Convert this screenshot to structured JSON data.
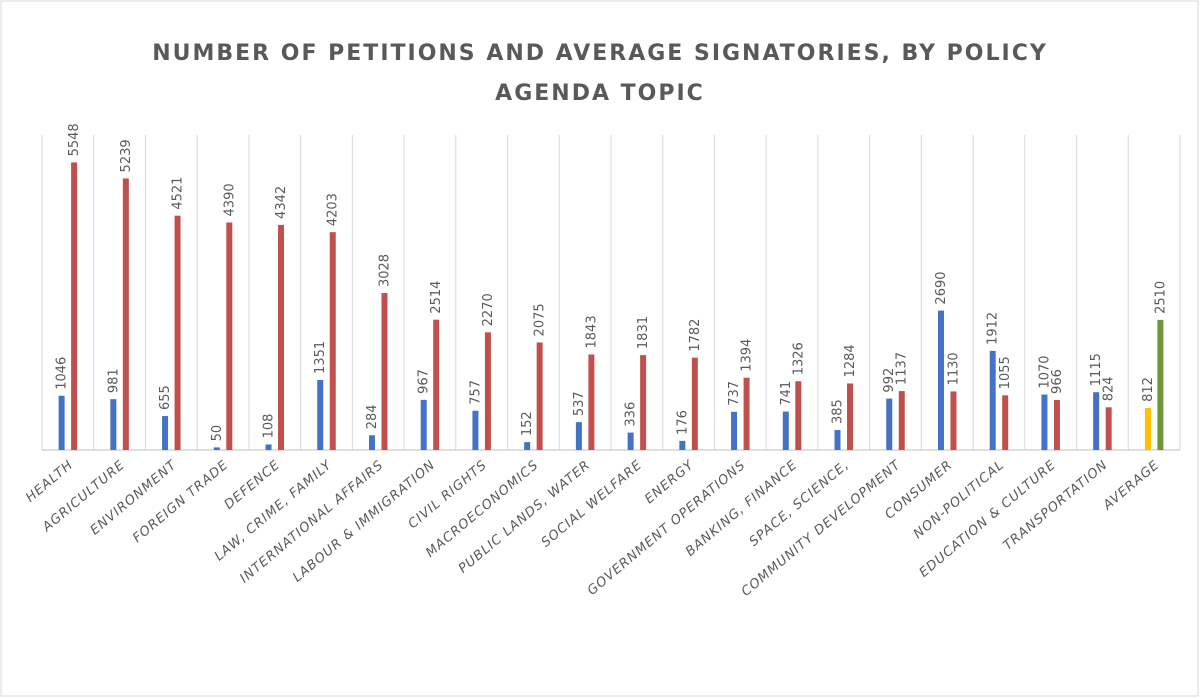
{
  "chart_data": {
    "type": "bar",
    "title": "NUMBER OF PETITIONS AND AVERAGE SIGNATORIES, BY POLICY AGENDA TOPIC",
    "categories": [
      "HEALTH",
      "AGRICULTURE",
      "ENVIRONMENT",
      "FOREIGN TRADE",
      "DEFENCE",
      "LAW, CRIME, FAMILY",
      "INTERNATIONAL AFFAIRS",
      "LABOUR & IMMIGRATION",
      "CIVIL RIGHTS",
      "MACROECONOMICS",
      "PUBLIC LANDS,  WATER",
      "SOCIAL WELFARE",
      "ENERGY",
      "GOVERNMENT OPERATIONS",
      "BANKING,  FINANCE",
      "SPACE, SCIENCE,",
      "COMMUNITY DEVELOPMENT",
      "CONSUMER",
      "NON-POLITICAL",
      "EDUCATION & CULTURE",
      "TRANSPORTATION",
      "AVERAGE"
    ],
    "series": [
      {
        "color": "#4472c4",
        "colors": [
          "#4472c4",
          "#4472c4",
          "#4472c4",
          "#4472c4",
          "#4472c4",
          "#4472c4",
          "#4472c4",
          "#4472c4",
          "#4472c4",
          "#4472c4",
          "#4472c4",
          "#4472c4",
          "#4472c4",
          "#4472c4",
          "#4472c4",
          "#4472c4",
          "#4472c4",
          "#4472c4",
          "#4472c4",
          "#4472c4",
          "#4472c4",
          "#ffc000"
        ],
        "values": [
          1046,
          981,
          655,
          50,
          108,
          1351,
          284,
          967,
          757,
          152,
          537,
          336,
          176,
          737,
          741,
          385,
          992,
          2690,
          1912,
          1070,
          1115,
          812
        ]
      },
      {
        "color": "#c0504d",
        "colors": [
          "#c0504d",
          "#c0504d",
          "#c0504d",
          "#c0504d",
          "#c0504d",
          "#c0504d",
          "#c0504d",
          "#c0504d",
          "#c0504d",
          "#c0504d",
          "#c0504d",
          "#c0504d",
          "#c0504d",
          "#c0504d",
          "#c0504d",
          "#c0504d",
          "#c0504d",
          "#c0504d",
          "#c0504d",
          "#c0504d",
          "#c0504d",
          "#70963a"
        ],
        "values": [
          5548,
          5239,
          4521,
          4390,
          4342,
          4203,
          3028,
          2514,
          2270,
          2075,
          1843,
          1831,
          1782,
          1394,
          1326,
          1284,
          1137,
          1130,
          1055,
          966,
          824,
          2510
        ]
      }
    ],
    "ylim": [
      0,
      6000
    ],
    "grid": true
  }
}
